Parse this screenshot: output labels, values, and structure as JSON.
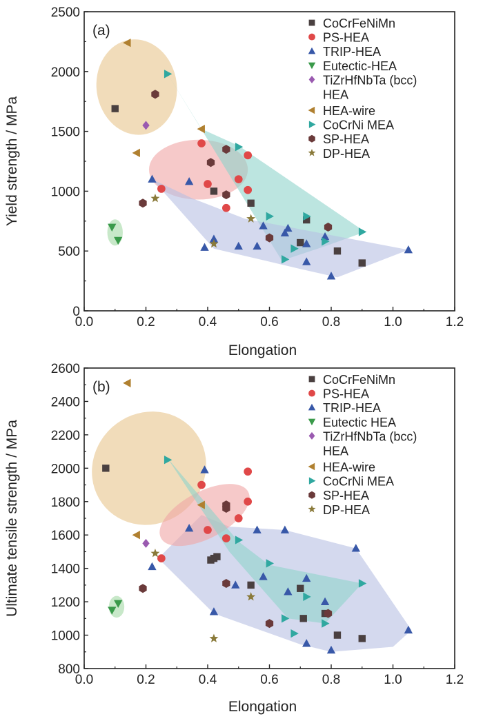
{
  "chart_data": [
    {
      "panel_label": "(a)",
      "type": "scatter",
      "xlabel": "Elongation",
      "ylabel": "Yield strength / MPa",
      "xlim": [
        0.0,
        1.2
      ],
      "ylim": [
        0,
        2500
      ],
      "xticks": [
        0.0,
        0.2,
        0.4,
        0.6,
        0.8,
        1.0,
        1.2
      ],
      "xtick_labels": [
        "0.0",
        "0.2",
        "0.4",
        "0.6",
        "0.8",
        "1.0",
        "1.2"
      ],
      "yticks": [
        0,
        500,
        1000,
        1500,
        2000,
        2500
      ],
      "ytick_labels": [
        "0",
        "500",
        "1000",
        "1500",
        "2000",
        "2500"
      ],
      "legend_position": "top-right",
      "regions": [
        {
          "type": "ellipse",
          "color": "#e7c48c",
          "cx": 0.17,
          "cy": 1870,
          "rx": 0.13,
          "ry": 400,
          "angle": -8
        },
        {
          "type": "ellipse",
          "color": "#f0a5a5",
          "cx": 0.37,
          "cy": 1180,
          "rx": 0.16,
          "ry": 250,
          "angle": 0
        },
        {
          "type": "polygon",
          "color": "#8fd4cc",
          "points": [
            [
              0.27,
              1980
            ],
            [
              0.38,
              1520
            ],
            [
              0.5,
              1380
            ],
            [
              0.91,
              660
            ],
            [
              0.78,
              540
            ],
            [
              0.64,
              420
            ]
          ]
        },
        {
          "type": "polygon",
          "color": "#b7c0e3",
          "points": [
            [
              0.22,
              1100
            ],
            [
              0.35,
              940
            ],
            [
              0.52,
              770
            ],
            [
              1.05,
              510
            ],
            [
              0.82,
              280
            ],
            [
              0.7,
              350
            ],
            [
              0.42,
              520
            ]
          ]
        },
        {
          "type": "ellipse",
          "color": "#a3d9a5",
          "cx": 0.1,
          "cy": 655,
          "rx": 0.025,
          "ry": 110,
          "angle": 0
        }
      ],
      "series": [
        {
          "name": "CoCrFeNiMn",
          "marker": "square",
          "color": "#4a4040",
          "x": [
            0.1,
            0.42,
            0.54,
            0.7,
            0.72,
            0.82,
            0.9
          ],
          "y": [
            1690,
            1000,
            900,
            570,
            760,
            500,
            400
          ]
        },
        {
          "name": "PS-HEA",
          "marker": "circle",
          "color": "#e04848",
          "x": [
            0.25,
            0.38,
            0.4,
            0.46,
            0.5,
            0.53,
            0.53
          ],
          "y": [
            1020,
            1400,
            1060,
            860,
            1100,
            1300,
            1010
          ]
        },
        {
          "name": "TRIP-HEA",
          "marker": "triangle-up",
          "color": "#3858a8",
          "x": [
            0.22,
            0.34,
            0.39,
            0.42,
            0.5,
            0.56,
            0.58,
            0.65,
            0.66,
            0.72,
            0.72,
            0.78,
            0.8,
            1.05
          ],
          "y": [
            1100,
            1080,
            530,
            600,
            540,
            540,
            710,
            650,
            690,
            410,
            560,
            620,
            290,
            510
          ]
        },
        {
          "name": "Eutectic-HEA",
          "marker": "triangle-down",
          "color": "#3a9a4a",
          "x": [
            0.09,
            0.11
          ],
          "y": [
            700,
            590
          ]
        },
        {
          "name": "TiZrHfNbTa (bcc)\nHEA",
          "legend_lines": [
            "TiZrHfNbTa (bcc)",
            "HEA"
          ],
          "marker": "diamond",
          "color": "#9a5ab0",
          "x": [
            0.2
          ],
          "y": [
            1550
          ]
        },
        {
          "name": "HEA-wire",
          "marker": "triangle-left",
          "color": "#b08030",
          "x": [
            0.14,
            0.17,
            0.38
          ],
          "y": [
            2240,
            1320,
            1520
          ]
        },
        {
          "name": "CoCrNi MEA",
          "marker": "triangle-right",
          "color": "#30a8a0",
          "x": [
            0.27,
            0.5,
            0.6,
            0.65,
            0.68,
            0.72,
            0.78,
            0.9
          ],
          "y": [
            1980,
            1370,
            790,
            430,
            520,
            790,
            580,
            660
          ]
        },
        {
          "name": "SP-HEA",
          "marker": "hexagon",
          "color": "#6a3a3a",
          "x": [
            0.19,
            0.23,
            0.41,
            0.46,
            0.46,
            0.6,
            0.79
          ],
          "y": [
            900,
            1810,
            1240,
            1350,
            970,
            610,
            700
          ]
        },
        {
          "name": "DP-HEA",
          "marker": "star",
          "color": "#8a7a3a",
          "x": [
            0.23,
            0.42,
            0.54
          ],
          "y": [
            940,
            560,
            770
          ]
        }
      ]
    },
    {
      "panel_label": "(b)",
      "type": "scatter",
      "xlabel": "Elongation",
      "ylabel": "Ultimate tensile strength / MPa",
      "xlim": [
        0.0,
        1.2
      ],
      "ylim": [
        800,
        2600
      ],
      "xticks": [
        0.0,
        0.2,
        0.4,
        0.6,
        0.8,
        1.0,
        1.2
      ],
      "xtick_labels": [
        "0.0",
        "0.2",
        "0.4",
        "0.6",
        "0.8",
        "1.0",
        "1.2"
      ],
      "yticks": [
        800,
        1000,
        1200,
        1400,
        1600,
        1800,
        2000,
        2200,
        2400,
        2600
      ],
      "ytick_labels": [
        "800",
        "1000",
        "1200",
        "1400",
        "1600",
        "1800",
        "2000",
        "2200",
        "2400",
        "2600"
      ],
      "legend_position": "top-right",
      "regions": [
        {
          "type": "ellipse",
          "color": "#e7c48c",
          "cx": 0.21,
          "cy": 2000,
          "rx": 0.19,
          "ry": 330,
          "angle": -42
        },
        {
          "type": "polygon",
          "color": "#b7c0e3",
          "points": [
            [
              0.24,
              1460
            ],
            [
              0.38,
              1720
            ],
            [
              0.47,
              1650
            ],
            [
              0.65,
              1630
            ],
            [
              0.88,
              1520
            ],
            [
              1.06,
              1030
            ],
            [
              1.0,
              930
            ],
            [
              0.8,
              900
            ],
            [
              0.7,
              945
            ],
            [
              0.42,
              1130
            ]
          ]
        },
        {
          "type": "ellipse",
          "color": "#f0a5a5",
          "cx": 0.39,
          "cy": 1720,
          "rx": 0.16,
          "ry": 140,
          "angle": -28
        },
        {
          "type": "polygon",
          "color": "#8fd4cc",
          "points": [
            [
              0.27,
              2060
            ],
            [
              0.5,
              1560
            ],
            [
              0.6,
              1420
            ],
            [
              0.9,
              1310
            ],
            [
              0.78,
              1070
            ],
            [
              0.66,
              1100
            ],
            [
              0.47,
              1500
            ],
            [
              0.37,
              1780
            ]
          ]
        },
        {
          "type": "ellipse",
          "color": "#a3d9a5",
          "cx": 0.105,
          "cy": 1170,
          "rx": 0.025,
          "ry": 65,
          "angle": 0
        }
      ],
      "series": [
        {
          "name": "CoCrFeNiMn",
          "marker": "square",
          "color": "#4a4040",
          "x": [
            0.07,
            0.41,
            0.42,
            0.43,
            0.54,
            0.7,
            0.71,
            0.78,
            0.82,
            0.9
          ],
          "y": [
            2000,
            1450,
            1460,
            1470,
            1300,
            1280,
            1100,
            1130,
            1000,
            980
          ]
        },
        {
          "name": "PS-HEA",
          "marker": "circle",
          "color": "#e04848",
          "x": [
            0.25,
            0.38,
            0.4,
            0.46,
            0.5,
            0.53,
            0.53
          ],
          "y": [
            1460,
            1900,
            1630,
            1580,
            1700,
            1980,
            1800
          ]
        },
        {
          "name": "TRIP-HEA",
          "marker": "triangle-up",
          "color": "#3858a8",
          "x": [
            0.22,
            0.34,
            0.39,
            0.42,
            0.49,
            0.56,
            0.58,
            0.65,
            0.66,
            0.72,
            0.72,
            0.78,
            0.8,
            0.88,
            1.05
          ],
          "y": [
            1410,
            1640,
            1990,
            1140,
            1300,
            1630,
            1350,
            1630,
            1260,
            950,
            1340,
            1200,
            910,
            1520,
            1030
          ]
        },
        {
          "name": "Eutectic HEA",
          "marker": "triangle-down",
          "color": "#3a9a4a",
          "x": [
            0.09,
            0.11
          ],
          "y": [
            1150,
            1190
          ]
        },
        {
          "name": "TiZrHfNbTa (bcc)\nHEA",
          "legend_lines": [
            "TiZrHfNbTa (bcc)",
            "HEA"
          ],
          "marker": "diamond",
          "color": "#9a5ab0",
          "x": [
            0.2
          ],
          "y": [
            1550
          ]
        },
        {
          "name": "HEA-wire",
          "marker": "triangle-left",
          "color": "#b08030",
          "x": [
            0.14,
            0.17,
            0.38
          ],
          "y": [
            2510,
            1600,
            1780
          ]
        },
        {
          "name": "CoCrNi MEA",
          "marker": "triangle-right",
          "color": "#30a8a0",
          "x": [
            0.27,
            0.5,
            0.6,
            0.65,
            0.68,
            0.72,
            0.78,
            0.9
          ],
          "y": [
            2050,
            1570,
            1430,
            1100,
            1010,
            1230,
            1070,
            1310
          ]
        },
        {
          "name": "SP-HEA",
          "marker": "hexagon",
          "color": "#6a3a3a",
          "x": [
            0.19,
            0.46,
            0.46,
            0.46,
            0.6,
            0.79
          ],
          "y": [
            1280,
            1780,
            1760,
            1310,
            1070,
            1130
          ]
        },
        {
          "name": "DP-HEA",
          "marker": "star",
          "color": "#8a7a3a",
          "x": [
            0.23,
            0.42,
            0.54
          ],
          "y": [
            1490,
            980,
            1230
          ]
        }
      ]
    }
  ]
}
